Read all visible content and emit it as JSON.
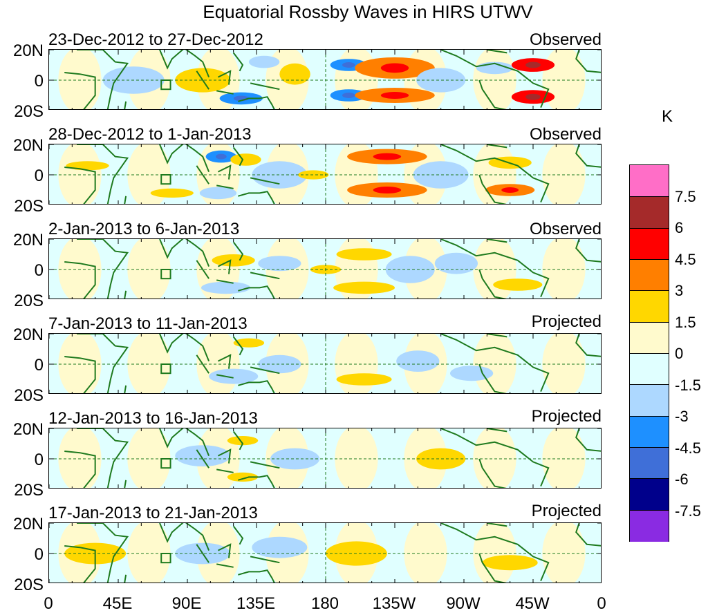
{
  "chart_data": {
    "type": "heatmap",
    "title": "Equatorial Rossby Waves in HIRS UTWV",
    "unit": "K",
    "y_tick_labels": [
      "20N",
      "0",
      "20S"
    ],
    "x_tick_labels": [
      "0",
      "45E",
      "90E",
      "135E",
      "180",
      "135W",
      "90W",
      "45W",
      "0"
    ],
    "x_range_deg": [
      0,
      360
    ],
    "y_range_deg": [
      -20,
      20
    ],
    "colorbar": {
      "levels": [
        "7.5",
        "6",
        "4.5",
        "3",
        "1.5",
        "0",
        "-1.5",
        "-3",
        "-4.5",
        "-6",
        "-7.5"
      ],
      "colors": [
        "#ff6ec7",
        "#a52a2a",
        "#ff0000",
        "#ff7f00",
        "#ffd700",
        "#fffacd",
        "#e0ffff",
        "#add8ff",
        "#1e90ff",
        "#3f6fd8",
        "#00008b",
        "#8a2be2"
      ]
    },
    "panels": [
      {
        "date_range": "23-Dec-2012 to 27-Dec-2012",
        "status": "Observed",
        "blobs": [
          {
            "lon": 100,
            "lat": 0,
            "w": 18,
            "h": 16,
            "v": 1.5
          },
          {
            "lon": 125,
            "lat": -12,
            "w": 14,
            "h": 8,
            "v": -3
          },
          {
            "lon": 140,
            "lat": 12,
            "w": 10,
            "h": 8,
            "v": -1.5
          },
          {
            "lon": 160,
            "lat": 4,
            "w": 10,
            "h": 14,
            "v": 1.5
          },
          {
            "lon": 195,
            "lat": 10,
            "w": 12,
            "h": 8,
            "v": -3
          },
          {
            "lon": 195,
            "lat": -10,
            "w": 12,
            "h": 8,
            "v": -3
          },
          {
            "lon": 225,
            "lat": 8,
            "w": 26,
            "h": 14,
            "v": 3
          },
          {
            "lon": 225,
            "lat": -10,
            "w": 26,
            "h": 10,
            "v": 3
          },
          {
            "lon": 255,
            "lat": 0,
            "w": 16,
            "h": 16,
            "v": -1.5
          },
          {
            "lon": 290,
            "lat": 8,
            "w": 12,
            "h": 8,
            "v": -1.5
          },
          {
            "lon": 315,
            "lat": 10,
            "w": 14,
            "h": 9,
            "v": 4.5
          },
          {
            "lon": 315,
            "lat": -11,
            "w": 14,
            "h": 9,
            "v": 4.5
          },
          {
            "lon": 55,
            "lat": 0,
            "w": 20,
            "h": 18,
            "v": -1.5
          }
        ]
      },
      {
        "date_range": "28-Dec-2012 to 1-Jan-2013",
        "status": "Observed",
        "blobs": [
          {
            "lon": 112,
            "lat": 12,
            "w": 10,
            "h": 8,
            "v": -3
          },
          {
            "lon": 128,
            "lat": 10,
            "w": 10,
            "h": 8,
            "v": 1.5
          },
          {
            "lon": 110,
            "lat": -12,
            "w": 12,
            "h": 8,
            "v": -1.5
          },
          {
            "lon": 150,
            "lat": 0,
            "w": 18,
            "h": 18,
            "v": -1.5
          },
          {
            "lon": 172,
            "lat": 0,
            "w": 10,
            "h": 6,
            "v": 1.5
          },
          {
            "lon": 220,
            "lat": 12,
            "w": 26,
            "h": 10,
            "v": 3
          },
          {
            "lon": 220,
            "lat": -10,
            "w": 26,
            "h": 10,
            "v": 3
          },
          {
            "lon": 255,
            "lat": 0,
            "w": 18,
            "h": 18,
            "v": -1.5
          },
          {
            "lon": 300,
            "lat": 8,
            "w": 14,
            "h": 8,
            "v": 1.5
          },
          {
            "lon": 300,
            "lat": -10,
            "w": 16,
            "h": 8,
            "v": 3
          },
          {
            "lon": 25,
            "lat": 6,
            "w": 14,
            "h": 6,
            "v": 1.5
          },
          {
            "lon": 80,
            "lat": -12,
            "w": 14,
            "h": 6,
            "v": 1.5
          }
        ]
      },
      {
        "date_range": "2-Jan-2013 to 6-Jan-2013",
        "status": "Observed",
        "blobs": [
          {
            "lon": 120,
            "lat": 6,
            "w": 14,
            "h": 8,
            "v": 1.5
          },
          {
            "lon": 115,
            "lat": -12,
            "w": 16,
            "h": 8,
            "v": -1.5
          },
          {
            "lon": 150,
            "lat": 4,
            "w": 14,
            "h": 10,
            "v": -1.5
          },
          {
            "lon": 180,
            "lat": 0,
            "w": 10,
            "h": 6,
            "v": 1.5
          },
          {
            "lon": 205,
            "lat": 10,
            "w": 18,
            "h": 8,
            "v": 1.5
          },
          {
            "lon": 205,
            "lat": -12,
            "w": 20,
            "h": 8,
            "v": 1.5
          },
          {
            "lon": 235,
            "lat": 0,
            "w": 16,
            "h": 18,
            "v": -1.5
          },
          {
            "lon": 265,
            "lat": 4,
            "w": 14,
            "h": 14,
            "v": -1.5
          },
          {
            "lon": 305,
            "lat": -10,
            "w": 16,
            "h": 8,
            "v": 1.5
          }
        ]
      },
      {
        "date_range": "7-Jan-2013 to 11-Jan-2013",
        "status": "Projected",
        "blobs": [
          {
            "lon": 130,
            "lat": 14,
            "w": 10,
            "h": 6,
            "v": 1.5
          },
          {
            "lon": 120,
            "lat": -8,
            "w": 16,
            "h": 10,
            "v": -1.5
          },
          {
            "lon": 150,
            "lat": 0,
            "w": 14,
            "h": 12,
            "v": -1.5
          },
          {
            "lon": 240,
            "lat": 2,
            "w": 14,
            "h": 14,
            "v": -1.5
          },
          {
            "lon": 275,
            "lat": -6,
            "w": 14,
            "h": 10,
            "v": -1.5
          },
          {
            "lon": 205,
            "lat": -10,
            "w": 18,
            "h": 8,
            "v": 1.5
          }
        ]
      },
      {
        "date_range": "12-Jan-2013 to 16-Jan-2013",
        "status": "Projected",
        "blobs": [
          {
            "lon": 126,
            "lat": 12,
            "w": 10,
            "h": 6,
            "v": 1.5
          },
          {
            "lon": 126,
            "lat": -12,
            "w": 10,
            "h": 6,
            "v": 1.5
          },
          {
            "lon": 100,
            "lat": 2,
            "w": 18,
            "h": 14,
            "v": -1.5
          },
          {
            "lon": 160,
            "lat": 0,
            "w": 16,
            "h": 14,
            "v": -1.5
          },
          {
            "lon": 255,
            "lat": 0,
            "w": 16,
            "h": 14,
            "v": 1.5
          }
        ]
      },
      {
        "date_range": "17-Jan-2013 to 21-Jan-2013",
        "status": "Projected",
        "blobs": [
          {
            "lon": 100,
            "lat": 0,
            "w": 18,
            "h": 14,
            "v": -1.5
          },
          {
            "lon": 150,
            "lat": 4,
            "w": 18,
            "h": 14,
            "v": -1.5
          },
          {
            "lon": 200,
            "lat": 0,
            "w": 20,
            "h": 16,
            "v": 1.5
          },
          {
            "lon": 300,
            "lat": -6,
            "w": 18,
            "h": 10,
            "v": 1.5
          },
          {
            "lon": 30,
            "lat": 0,
            "w": 20,
            "h": 14,
            "v": 1.5
          }
        ]
      }
    ]
  }
}
